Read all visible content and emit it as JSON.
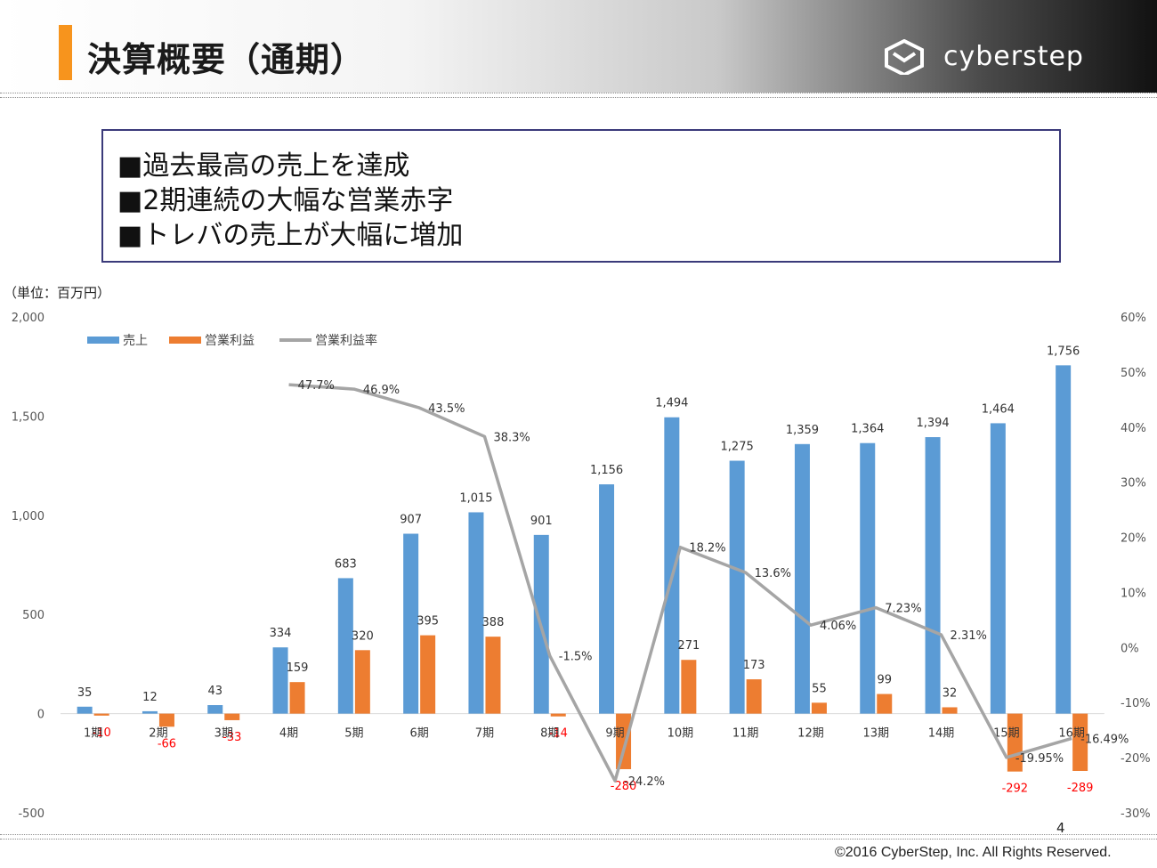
{
  "header": {
    "title": "決算概要（通期）",
    "logo_text": "cyberstep",
    "accent_color": "#f7941d"
  },
  "summary": {
    "lines": [
      "■過去最高の売上を達成",
      "■2期連続の大幅な営業赤字",
      "■トレバの売上が大幅に増加"
    ]
  },
  "unit_label": "（単位：百万円）",
  "chart_data": {
    "type": "bar",
    "categories": [
      "1期",
      "2期",
      "3期",
      "4期",
      "5期",
      "6期",
      "7期",
      "8期",
      "9期",
      "10期",
      "11期",
      "12期",
      "13期",
      "14期",
      "15期",
      "16期"
    ],
    "series": [
      {
        "name": "売上",
        "type": "bar",
        "color": "#5b9bd5",
        "values": [
          35,
          12,
          43,
          334,
          683,
          907,
          1015,
          901,
          1156,
          1494,
          1275,
          1359,
          1364,
          1394,
          1464,
          1756
        ],
        "labels": [
          "35",
          "12",
          "43",
          "334",
          "683",
          "907",
          "1,015",
          "901",
          "1,156",
          "1,494",
          "1,275",
          "1,359",
          "1,364",
          "1,394",
          "1,464",
          "1,756"
        ]
      },
      {
        "name": "営業利益",
        "type": "bar",
        "color": "#ed7d31",
        "values": [
          -10,
          -66,
          -33,
          159,
          320,
          395,
          388,
          -14,
          -280,
          271,
          173,
          55,
          99,
          32,
          -292,
          -289
        ],
        "labels": [
          "-10",
          "-66",
          "-33",
          "159",
          "320",
          "395",
          "388",
          "-14",
          "-280",
          "271",
          "173",
          "55",
          "99",
          "32",
          "-292",
          "-289"
        ]
      },
      {
        "name": "営業利益率",
        "type": "line",
        "color": "#a5a5a5",
        "axis": "right",
        "values": [
          null,
          null,
          null,
          47.7,
          46.9,
          43.5,
          38.3,
          -1.5,
          -24.2,
          18.2,
          13.6,
          4.06,
          7.23,
          2.31,
          -19.95,
          -16.49
        ],
        "labels": [
          "",
          "",
          "",
          "47.7%",
          "46.9%",
          "43.5%",
          "38.3%",
          "-1.5%",
          "-24.2%",
          "18.2%",
          "13.6%",
          "4.06%",
          "7.23%",
          "2.31%",
          "-19.95%",
          "-16.49%"
        ]
      }
    ],
    "left_axis": {
      "min": -500,
      "max": 2000,
      "ticks": [
        -500,
        0,
        500,
        1000,
        1500,
        2000
      ],
      "tick_labels": [
        "-500",
        "0",
        "500",
        "1,000",
        "1,500",
        "2,000"
      ]
    },
    "right_axis": {
      "min": -30,
      "max": 60,
      "ticks": [
        -30,
        -20,
        -10,
        0,
        10,
        20,
        30,
        40,
        50,
        60
      ],
      "tick_labels": [
        "-30%",
        "-20%",
        "-10%",
        "0%",
        "10%",
        "20%",
        "30%",
        "40%",
        "50%",
        "60%"
      ]
    },
    "negative_label_color": "#ff0000",
    "grid": false,
    "legend_position": "top-left"
  },
  "footer": {
    "page_number": "4",
    "copyright": "©2016 CyberStep, Inc. All Rights Reserved."
  }
}
